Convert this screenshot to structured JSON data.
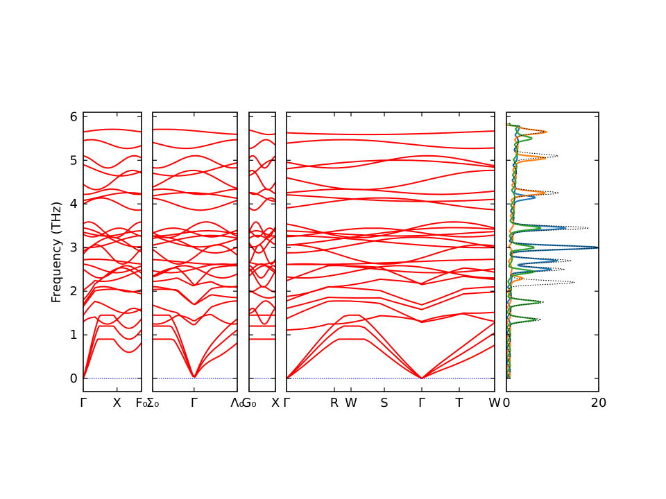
{
  "chart_data": {
    "type": "line",
    "ylabel": "Frequency (THz)",
    "ylim": [
      -0.3,
      6.1
    ],
    "yticks": [
      "0",
      "1",
      "2",
      "3",
      "4",
      "5",
      "6"
    ],
    "panels": [
      {
        "id": "p1",
        "xlim": [
          0,
          1
        ],
        "ticks": [
          {
            "x": 0,
            "label": "Γ"
          },
          {
            "x": 0.58,
            "label": "X"
          },
          {
            "x": 1,
            "label": "F₀"
          }
        ]
      },
      {
        "id": "p2",
        "xlim": [
          0,
          1
        ],
        "ticks": [
          {
            "x": 0,
            "label": "Σ₀"
          },
          {
            "x": 0.49,
            "label": "Γ"
          },
          {
            "x": 1,
            "label": "Λ₀"
          }
        ]
      },
      {
        "id": "p3",
        "xlim": [
          0,
          1
        ],
        "ticks": [
          {
            "x": 0,
            "label": "G₀"
          },
          {
            "x": 1,
            "label": "X"
          }
        ]
      },
      {
        "id": "p4",
        "xlim": [
          0,
          1
        ],
        "ticks": [
          {
            "x": 0,
            "label": "Γ"
          },
          {
            "x": 0.23,
            "label": "R"
          },
          {
            "x": 0.31,
            "label": "W"
          },
          {
            "x": 0.47,
            "label": "S"
          },
          {
            "x": 0.65,
            "label": "Γ"
          },
          {
            "x": 0.83,
            "label": "T"
          },
          {
            "x": 1,
            "label": "W"
          }
        ]
      }
    ],
    "dos_panel": {
      "xlim": [
        0,
        20
      ],
      "xticks": [
        "0",
        "20"
      ],
      "series": [
        {
          "color": "#1f77b4",
          "peaks": [
            [
              3.0,
              19
            ],
            [
              3.45,
              12
            ],
            [
              2.7,
              10
            ],
            [
              2.5,
              9
            ],
            [
              4.15,
              5
            ]
          ]
        },
        {
          "color": "#ff7f0e",
          "peaks": [
            [
              5.65,
              6
            ],
            [
              5.05,
              6.5
            ],
            [
              4.25,
              6.5
            ],
            [
              2.3,
              3
            ]
          ]
        },
        {
          "color": "#2ca02c",
          "peaks": [
            [
              3.45,
              6
            ],
            [
              3.0,
              5
            ],
            [
              2.45,
              5
            ],
            [
              1.75,
              6.5
            ],
            [
              1.35,
              5.5
            ],
            [
              5.5,
              3
            ]
          ]
        },
        {
          "color": "#000000",
          "peaks": [
            [
              3.0,
              19
            ],
            [
              3.45,
              17
            ],
            [
              2.7,
              13
            ],
            [
              2.5,
              12
            ],
            [
              2.2,
              14
            ],
            [
              4.25,
              10
            ],
            [
              5.1,
              9
            ],
            [
              5.65,
              6
            ],
            [
              1.75,
              8
            ],
            [
              1.35,
              7
            ]
          ]
        }
      ]
    }
  }
}
